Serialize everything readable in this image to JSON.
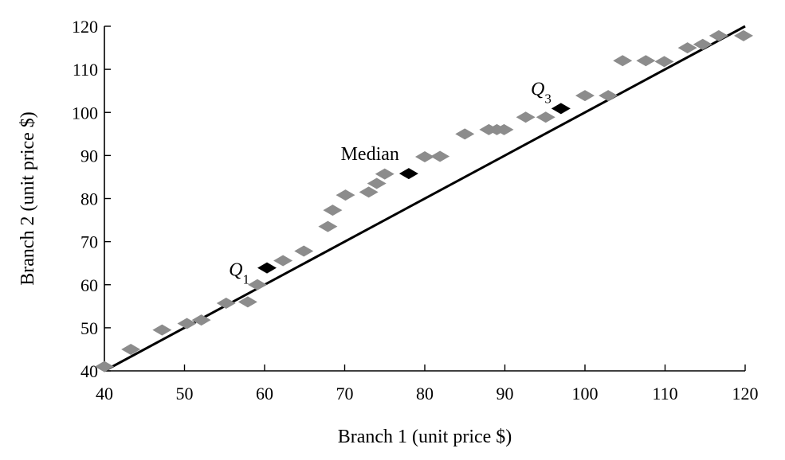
{
  "chart_data": {
    "type": "scatter",
    "title": "",
    "xlabel": "Branch 1 (unit price $)",
    "ylabel": "Branch 2 (unit price $)",
    "xlim": [
      40,
      120
    ],
    "ylim": [
      40,
      120
    ],
    "xticks": [
      40,
      50,
      60,
      70,
      80,
      90,
      100,
      110,
      120
    ],
    "yticks": [
      40,
      50,
      60,
      70,
      80,
      90,
      100,
      110,
      120
    ],
    "grid": false,
    "legend": "none",
    "reference_line": {
      "from": [
        40,
        40
      ],
      "to": [
        120,
        120
      ],
      "color": "#000000"
    },
    "series": [
      {
        "color": "#8c8c8c",
        "marker": "diamond",
        "points": [
          [
            40,
            41
          ],
          [
            43.3,
            45
          ],
          [
            47.2,
            49.5
          ],
          [
            50.3,
            51
          ],
          [
            52.1,
            51.8
          ],
          [
            55.2,
            55.7
          ],
          [
            57.9,
            56
          ],
          [
            59.1,
            60
          ],
          [
            62.3,
            65.6
          ],
          [
            64.9,
            67.8
          ],
          [
            67.9,
            73.5
          ],
          [
            68.5,
            77.3
          ],
          [
            70.1,
            80.8
          ],
          [
            73,
            81.5
          ],
          [
            74,
            83.5
          ],
          [
            75,
            85.7
          ],
          [
            80,
            89.7
          ],
          [
            81.9,
            89.8
          ],
          [
            85,
            95
          ],
          [
            88,
            96
          ],
          [
            89,
            96
          ],
          [
            89.9,
            96
          ],
          [
            92.6,
            98.9
          ],
          [
            95.1,
            98.9
          ],
          [
            100,
            103.9
          ],
          [
            102.9,
            103.9
          ],
          [
            104.7,
            112
          ],
          [
            107.6,
            112
          ],
          [
            109.9,
            111.8
          ],
          [
            112.8,
            115
          ],
          [
            114.7,
            115.8
          ],
          [
            116.7,
            117.8
          ],
          [
            119.8,
            117.8
          ]
        ]
      },
      {
        "color": "#000000",
        "marker": "diamond",
        "points": [
          [
            60.3,
            63.9
          ],
          [
            78,
            85.8
          ],
          [
            97,
            100.9
          ]
        ]
      }
    ],
    "annotations": [
      {
        "label": "Q",
        "sub": "1",
        "italic": true,
        "x": 60.3,
        "y": 63.9,
        "position": "left"
      },
      {
        "label": "Median",
        "sub": "",
        "italic": false,
        "x": 78,
        "y": 85.8,
        "position": "upper-left"
      },
      {
        "label": "Q",
        "sub": "3",
        "italic": true,
        "x": 97,
        "y": 100.9,
        "position": "upper-left"
      }
    ]
  }
}
